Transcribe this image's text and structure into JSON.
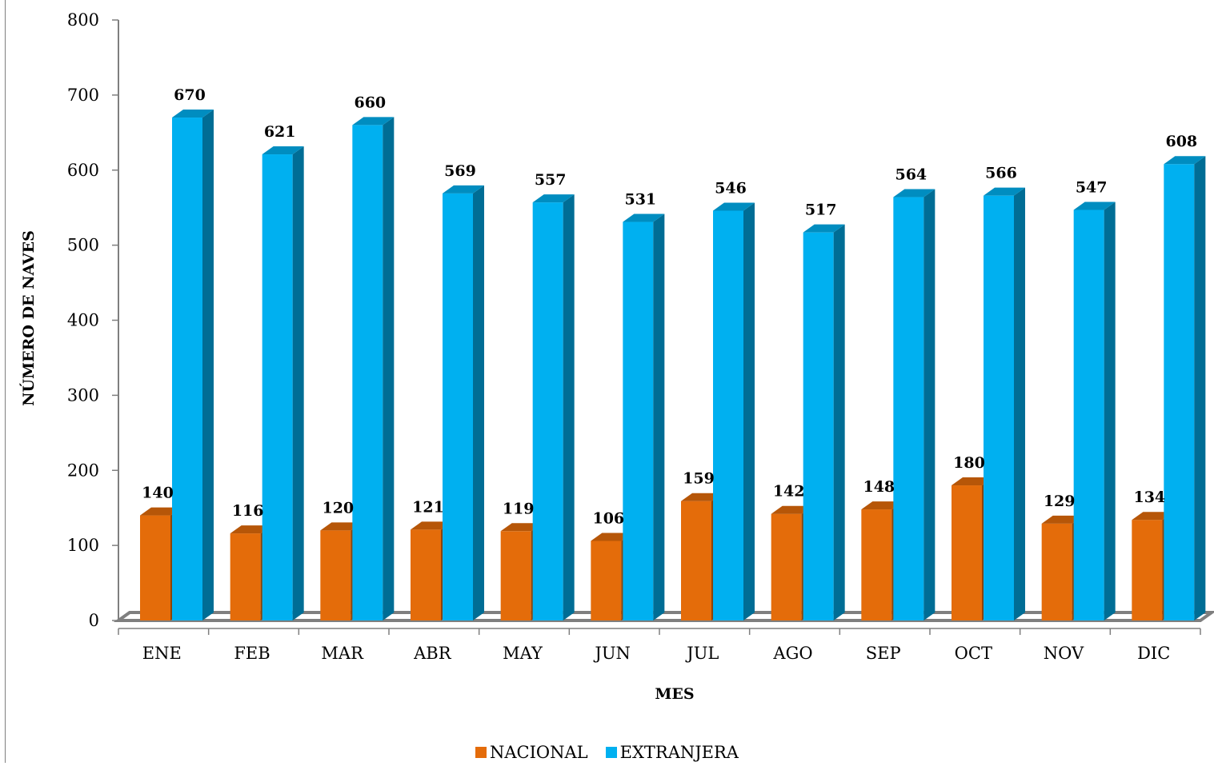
{
  "chart_data": {
    "type": "bar",
    "categories": [
      "ENE",
      "FEB",
      "MAR",
      "ABR",
      "MAY",
      "JUN",
      "JUL",
      "AGO",
      "SEP",
      "OCT",
      "NOV",
      "DIC"
    ],
    "series": [
      {
        "name": "NACIONAL",
        "color": "#E46C0A",
        "values": [
          140,
          116,
          120,
          121,
          119,
          106,
          159,
          142,
          148,
          180,
          129,
          134
        ]
      },
      {
        "name": "EXTRANJERA",
        "color": "#00B0F0",
        "values": [
          670,
          621,
          660,
          569,
          557,
          531,
          546,
          517,
          564,
          566,
          547,
          608
        ]
      }
    ],
    "data_labels": {
      "NACIONAL": [
        "140",
        "116",
        "120",
        "121",
        "119",
        "106",
        "159",
        "142",
        "148",
        "180",
        "129",
        "134"
      ],
      "EXTRANJERA": [
        "670",
        "621",
        "660",
        "569",
        "557",
        "531",
        "546",
        "517",
        "564",
        "566",
        "547",
        "608"
      ]
    },
    "xlabel": "MES",
    "ylabel": "NÚMERO DE NAVES",
    "ylim": [
      0,
      800
    ],
    "yticks": [
      "0",
      "100",
      "200",
      "300",
      "400",
      "500",
      "600",
      "700",
      "800"
    ],
    "grid": false,
    "legend_position": "bottom",
    "style": "3d-clustered-column"
  }
}
